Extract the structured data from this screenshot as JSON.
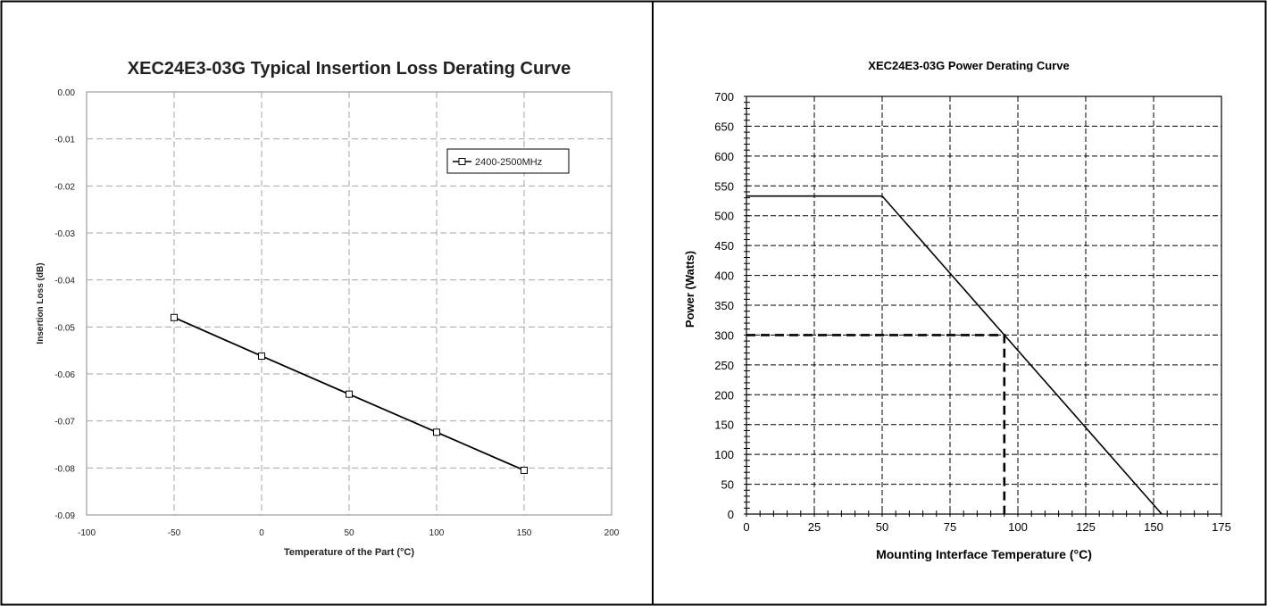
{
  "chart_data": [
    {
      "type": "line",
      "title": "XEC24E3-03G Typical Insertion Loss Derating Curve",
      "xlabel": "Temperature of the Part (°C)",
      "ylabel": "Insertion Loss (dB)",
      "xlim": [
        -100,
        200
      ],
      "ylim": [
        -0.09,
        0.0
      ],
      "xticks": [
        "-100",
        "-50",
        "0",
        "50",
        "100",
        "150",
        "200"
      ],
      "yticks": [
        "0.00",
        "-0.01",
        "-0.02",
        "-0.03",
        "-0.04",
        "-0.05",
        "-0.06",
        "-0.07",
        "-0.08",
        "-0.09"
      ],
      "grid": true,
      "legend_position": "top-right",
      "series": [
        {
          "name": "2400-2500MHz",
          "marker": "square",
          "x": [
            -50,
            0,
            50,
            100,
            150
          ],
          "y": [
            -0.048,
            -0.0562,
            -0.0643,
            -0.0724,
            -0.0805
          ]
        }
      ]
    },
    {
      "type": "line",
      "title": "XEC24E3-03G Power Derating Curve",
      "xlabel": "Mounting Interface  Temperature (°C)",
      "ylabel": "Power (Watts)",
      "xlim": [
        0,
        175
      ],
      "ylim": [
        0,
        700
      ],
      "xticks": [
        "0",
        "25",
        "50",
        "75",
        "100",
        "125",
        "150",
        "175"
      ],
      "yticks": [
        "0",
        "50",
        "100",
        "150",
        "200",
        "250",
        "300",
        "350",
        "400",
        "450",
        "500",
        "550",
        "600",
        "650",
        "700"
      ],
      "grid": true,
      "series": [
        {
          "x": [
            0,
            50,
            153
          ],
          "y": [
            533,
            533,
            0
          ]
        }
      ],
      "reference_lines": [
        {
          "style": "dashed",
          "x": [
            0,
            95,
            95
          ],
          "y": [
            300,
            300,
            0
          ]
        }
      ]
    }
  ]
}
